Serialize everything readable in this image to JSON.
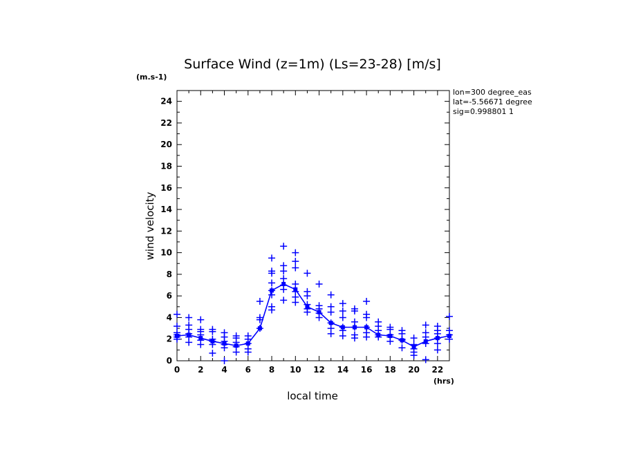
{
  "chart_data": {
    "type": "line",
    "title": "Surface Wind (z=1m) (Ls=23-28) [m/s]",
    "ylabel": "wind velocity",
    "yunit": "(m.s-1)",
    "xlabel": "local time",
    "xunit": "(hrs)",
    "xlim": [
      0,
      23
    ],
    "ylim": [
      0,
      25
    ],
    "xticks": [
      0,
      2,
      4,
      6,
      8,
      10,
      12,
      14,
      16,
      18,
      20,
      22
    ],
    "yticks": [
      0,
      2,
      4,
      6,
      8,
      10,
      12,
      14,
      16,
      18,
      20,
      22,
      24
    ],
    "grid": false,
    "info": [
      "lon=300 degree_eas",
      "lat=-5.56671 degree",
      "sig=0.998801 1"
    ],
    "series": [
      {
        "style": "line",
        "color": "#0000ff",
        "x": [
          0,
          1,
          2,
          3,
          4,
          5,
          6,
          7,
          8,
          9,
          10,
          11,
          12,
          13,
          14,
          15,
          16,
          17,
          18,
          19,
          20,
          21,
          22,
          23
        ],
        "y": [
          2.3,
          2.4,
          2.1,
          1.8,
          1.6,
          1.4,
          1.6,
          3.0,
          6.5,
          7.1,
          6.6,
          5.0,
          4.5,
          3.5,
          3.1,
          3.1,
          3.1,
          2.4,
          2.3,
          1.9,
          1.3,
          1.8,
          2.1,
          2.3
        ]
      },
      {
        "style": "markers",
        "marker": "+",
        "color": "#0000ff",
        "points": [
          [
            0,
            4.3
          ],
          [
            0,
            3.2
          ],
          [
            0,
            2.6
          ],
          [
            0,
            2.4
          ],
          [
            0,
            2.2
          ],
          [
            0,
            2.0
          ],
          [
            1,
            4.0
          ],
          [
            1,
            3.3
          ],
          [
            1,
            2.9
          ],
          [
            1,
            2.5
          ],
          [
            1,
            2.2
          ],
          [
            1,
            1.7
          ],
          [
            2,
            3.8
          ],
          [
            2,
            2.9
          ],
          [
            2,
            2.7
          ],
          [
            2,
            2.4
          ],
          [
            2,
            1.9
          ],
          [
            2,
            1.5
          ],
          [
            3,
            2.9
          ],
          [
            3,
            2.7
          ],
          [
            3,
            2.0
          ],
          [
            3,
            1.8
          ],
          [
            3,
            1.5
          ],
          [
            3,
            0.7
          ],
          [
            4,
            2.6
          ],
          [
            4,
            2.2
          ],
          [
            4,
            1.8
          ],
          [
            4,
            1.5
          ],
          [
            4,
            1.2
          ],
          [
            4,
            0.0
          ],
          [
            5,
            2.3
          ],
          [
            5,
            2.1
          ],
          [
            5,
            1.7
          ],
          [
            5,
            1.3
          ],
          [
            5,
            0.8
          ],
          [
            6,
            2.3
          ],
          [
            6,
            2.0
          ],
          [
            6,
            1.6
          ],
          [
            6,
            1.1
          ],
          [
            6,
            0.8
          ],
          [
            7,
            5.5
          ],
          [
            7,
            4.0
          ],
          [
            7,
            3.8
          ],
          [
            7,
            3.0
          ],
          [
            8,
            9.5
          ],
          [
            8,
            8.3
          ],
          [
            8,
            8.1
          ],
          [
            8,
            7.2
          ],
          [
            8,
            6.5
          ],
          [
            8,
            6.1
          ],
          [
            8,
            5.0
          ],
          [
            8,
            4.7
          ],
          [
            9,
            10.6
          ],
          [
            9,
            8.8
          ],
          [
            9,
            8.3
          ],
          [
            9,
            7.6
          ],
          [
            9,
            7.0
          ],
          [
            9,
            6.6
          ],
          [
            9,
            5.6
          ],
          [
            10,
            10.0
          ],
          [
            10,
            9.2
          ],
          [
            10,
            8.6
          ],
          [
            10,
            7.1
          ],
          [
            10,
            6.4
          ],
          [
            10,
            5.9
          ],
          [
            10,
            5.4
          ],
          [
            11,
            8.1
          ],
          [
            11,
            6.4
          ],
          [
            11,
            6.0
          ],
          [
            11,
            5.2
          ],
          [
            11,
            4.8
          ],
          [
            11,
            4.5
          ],
          [
            12,
            7.1
          ],
          [
            12,
            5.1
          ],
          [
            12,
            4.8
          ],
          [
            12,
            4.4
          ],
          [
            12,
            4.0
          ],
          [
            13,
            6.1
          ],
          [
            13,
            5.0
          ],
          [
            13,
            4.5
          ],
          [
            13,
            3.5
          ],
          [
            13,
            3.0
          ],
          [
            13,
            2.5
          ],
          [
            14,
            5.3
          ],
          [
            14,
            4.6
          ],
          [
            14,
            4.0
          ],
          [
            14,
            3.1
          ],
          [
            14,
            2.8
          ],
          [
            14,
            2.3
          ],
          [
            15,
            4.8
          ],
          [
            15,
            4.6
          ],
          [
            15,
            3.6
          ],
          [
            15,
            3.1
          ],
          [
            15,
            2.4
          ],
          [
            15,
            2.1
          ],
          [
            16,
            5.5
          ],
          [
            16,
            4.3
          ],
          [
            16,
            4.0
          ],
          [
            16,
            3.1
          ],
          [
            16,
            2.6
          ],
          [
            16,
            2.2
          ],
          [
            17,
            3.6
          ],
          [
            17,
            3.2
          ],
          [
            17,
            2.8
          ],
          [
            17,
            2.4
          ],
          [
            17,
            2.2
          ],
          [
            18,
            3.1
          ],
          [
            18,
            2.9
          ],
          [
            18,
            2.4
          ],
          [
            18,
            2.2
          ],
          [
            18,
            1.8
          ],
          [
            19,
            2.8
          ],
          [
            19,
            2.5
          ],
          [
            19,
            2.0
          ],
          [
            19,
            1.9
          ],
          [
            19,
            1.2
          ],
          [
            20,
            2.1
          ],
          [
            20,
            1.5
          ],
          [
            20,
            1.1
          ],
          [
            20,
            0.8
          ],
          [
            20,
            0.5
          ],
          [
            21,
            3.3
          ],
          [
            21,
            2.6
          ],
          [
            21,
            2.2
          ],
          [
            21,
            1.6
          ],
          [
            21,
            0.1
          ],
          [
            22,
            3.2
          ],
          [
            22,
            2.8
          ],
          [
            22,
            2.5
          ],
          [
            22,
            2.1
          ],
          [
            22,
            1.6
          ],
          [
            22,
            1.0
          ],
          [
            23,
            4.1
          ],
          [
            23,
            2.8
          ],
          [
            23,
            2.4
          ],
          [
            23,
            2.0
          ]
        ]
      }
    ]
  }
}
